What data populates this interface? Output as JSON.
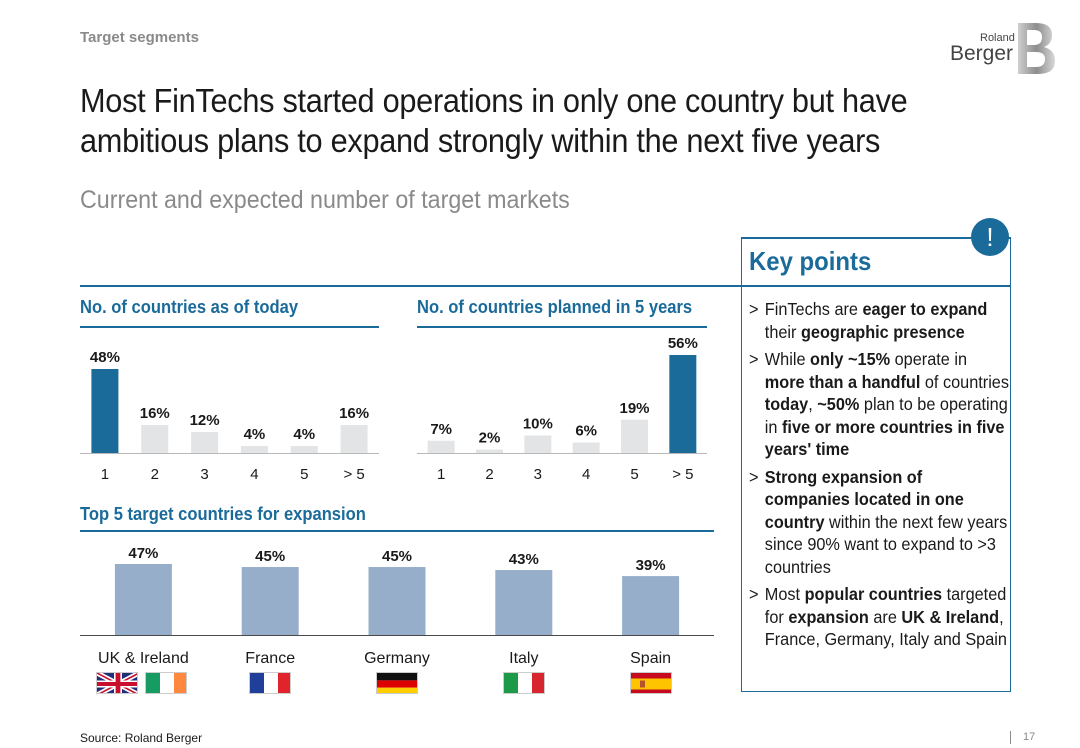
{
  "header": {
    "section_label": "Target segments",
    "title_line1": "Most FinTechs started operations in only one country but have",
    "title_line2": "ambitious plans to expand strongly within the next five years",
    "subtitle": "Current and expected number of target markets"
  },
  "logo": {
    "small": "Roland",
    "big": "Berger"
  },
  "chart_data": [
    {
      "type": "bar",
      "title": "No. of countries as of today",
      "categories": [
        "1",
        "2",
        "3",
        "4",
        "5",
        "> 5"
      ],
      "values": [
        48,
        16,
        12,
        4,
        4,
        16
      ],
      "value_labels": [
        "48%",
        "16%",
        "12%",
        "4%",
        "4%",
        "16%"
      ],
      "highlight_index": 0,
      "ylim": [
        0,
        56
      ]
    },
    {
      "type": "bar",
      "title": "No. of countries planned in 5 years",
      "categories": [
        "1",
        "2",
        "3",
        "4",
        "5",
        "> 5"
      ],
      "values": [
        7,
        2,
        10,
        6,
        19,
        56
      ],
      "value_labels": [
        "7%",
        "2%",
        "10%",
        "6%",
        "19%",
        "56%"
      ],
      "highlight_index": 5,
      "ylim": [
        0,
        56
      ]
    },
    {
      "type": "bar",
      "title": "Top 5 target countries for expansion",
      "categories": [
        "UK & Ireland",
        "France",
        "Germany",
        "Italy",
        "Spain"
      ],
      "values": [
        47,
        45,
        45,
        43,
        39
      ],
      "value_labels": [
        "47%",
        "45%",
        "45%",
        "43%",
        "39%"
      ],
      "ylim": [
        0,
        47
      ]
    }
  ],
  "colors": {
    "accent": "#1b6b9a",
    "bar_light": "#e3e4e6",
    "bar_country": "#97aecb"
  },
  "key_points": {
    "title": "Key points",
    "icon": "exclamation-icon",
    "icon_glyph": "!"
  },
  "bullets": [
    [
      "FinTechs are ",
      "eager to expand",
      " their ",
      "geographic presence",
      ""
    ],
    [
      "While ",
      "only ~15%",
      " operate in ",
      "more than a handful",
      " of countries ",
      "today",
      ", ",
      "~50%",
      " plan to be operating in ",
      "five or more countries in five years' time",
      ""
    ],
    [
      "",
      "Strong expansion of companies located in one country",
      " within the next few years since 90% want to expand to >3 countries"
    ],
    [
      "Most ",
      "popular countries",
      " targeted for ",
      "expansion",
      " are ",
      "UK & Ireland",
      ", France, Germany, Italy and Spain"
    ]
  ],
  "bullet_marker": ">",
  "footer": {
    "source": "Source: Roland Berger",
    "page": "17"
  }
}
